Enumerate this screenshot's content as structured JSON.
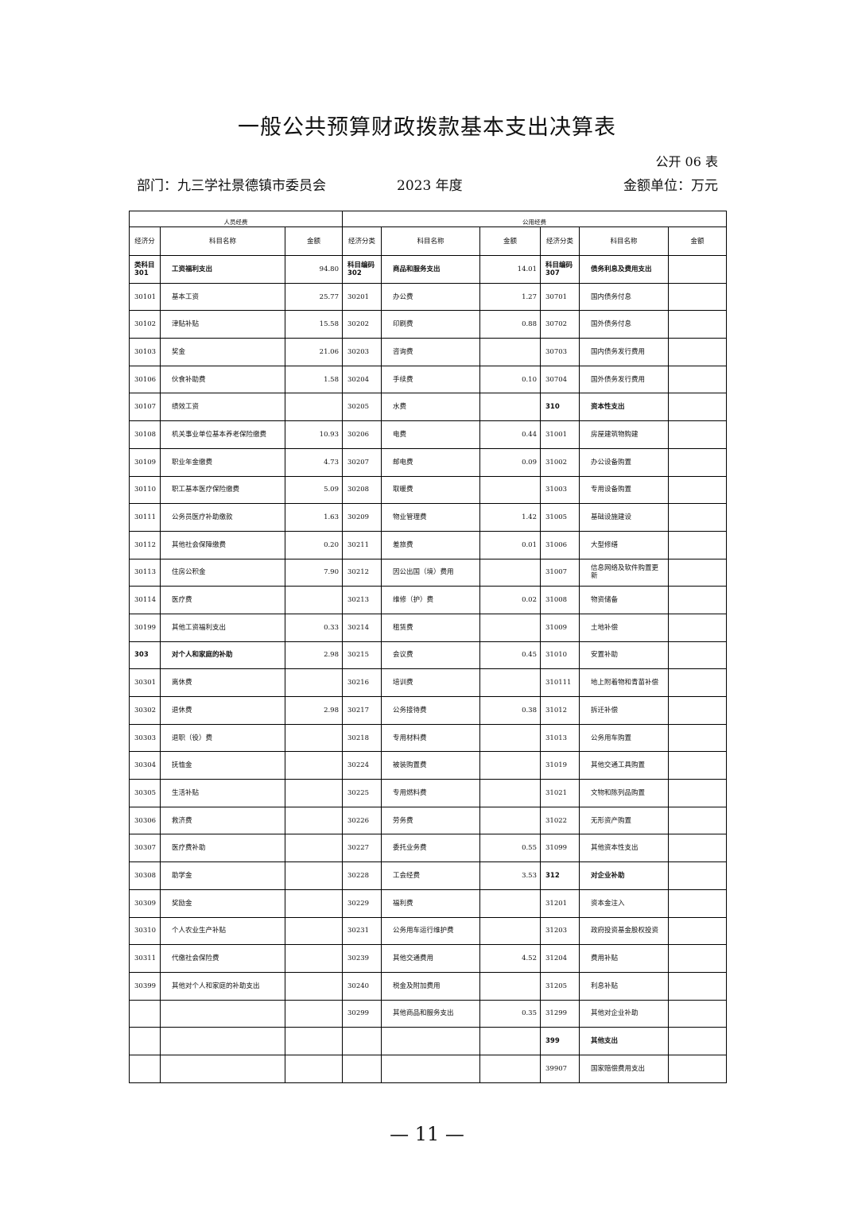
{
  "header": {
    "title": "一般公共预算财政拨款基本支出决算表",
    "form_no": "公开 06 表",
    "department": "部门：九三学社景德镇市委员会",
    "year": "2023 年度",
    "unit": "金额单位：万元"
  },
  "table": {
    "groups": [
      "人员经费",
      "公用经费"
    ],
    "columns": [
      "经济分",
      "科目名称",
      "金额",
      "经济分类",
      "科目名称",
      "金额",
      "经济分类",
      "科目名称",
      "金额"
    ],
    "rows": [
      [
        "类科目\n301",
        "工资福利支出",
        "94.80",
        "科目编码\n302",
        "商品和服务支出",
        "14.01",
        "科目编码\n307",
        "债务利息及费用支出",
        null
      ],
      [
        "30101",
        "基本工资",
        "25.77",
        "30201",
        "办公费",
        "1.27",
        "30701",
        "国内债务付息",
        null
      ],
      [
        "30102",
        "津贴补贴",
        "15.58",
        "30202",
        "印刷费",
        "0.88",
        "30702",
        "国外债务付息",
        null
      ],
      [
        "30103",
        "奖金",
        "21.06",
        "30203",
        "咨询费",
        null,
        "30703",
        "国内债务发行费用",
        null
      ],
      [
        "30106",
        "伙食补助费",
        "1.58",
        "30204",
        "手续费",
        "0.10",
        "30704",
        "国外债务发行费用",
        null
      ],
      [
        "30107",
        "绩效工资",
        null,
        "30205",
        "水费",
        null,
        "310",
        "资本性支出",
        null
      ],
      [
        "30108",
        "机关事业单位基本养老保险缴费",
        "10.93",
        "30206",
        "电费",
        "0.44",
        "31001",
        "房屋建筑物购建",
        null
      ],
      [
        "30109",
        "职业年金缴费",
        "4.73",
        "30207",
        "邮电费",
        "0.09",
        "31002",
        "办公设备购置",
        null
      ],
      [
        "30110",
        "职工基本医疗保险缴费",
        "5.09",
        "30208",
        "取暖费",
        null,
        "31003",
        "专用设备购置",
        null
      ],
      [
        "30111",
        "公务员医疗补助缴款",
        "1.63",
        "30209",
        "物业管理费",
        "1.42",
        "31005",
        "基础设施建设",
        null
      ],
      [
        "30112",
        "其他社会保障缴费",
        "0.20",
        "30211",
        "差旅费",
        "0.01",
        "31006",
        "大型修缮",
        null
      ],
      [
        "30113",
        "住房公积金",
        "7.90",
        "30212",
        "因公出国（境）费用",
        null,
        "31007",
        "信息网络及软件购置更新",
        null
      ],
      [
        "30114",
        "医疗费",
        null,
        "30213",
        "维修（护）费",
        "0.02",
        "31008",
        "物资储备",
        null
      ],
      [
        "30199",
        "其他工资福利支出",
        "0.33",
        "30214",
        "租赁费",
        null,
        "31009",
        "土地补偿",
        null
      ],
      [
        "303",
        "对个人和家庭的补助",
        "2.98",
        "30215",
        "会议费",
        "0.45",
        "31010",
        "安置补助",
        null
      ],
      [
        "30301",
        "离休费",
        null,
        "30216",
        "培训费",
        null,
        "310111",
        "地上附着物和青苗补偿",
        null
      ],
      [
        "30302",
        "退休费",
        "2.98",
        "30217",
        "公务接待费",
        "0.38",
        "31012",
        "拆迁补偿",
        null
      ],
      [
        "30303",
        "退职（役）费",
        null,
        "30218",
        "专用材料费",
        null,
        "31013",
        "公务用车购置",
        null
      ],
      [
        "30304",
        "抚恤金",
        null,
        "30224",
        "被装购置费",
        null,
        "31019",
        "其他交通工具购置",
        null
      ],
      [
        "30305",
        "生活补贴",
        null,
        "30225",
        "专用燃料费",
        null,
        "31021",
        "文物和陈列品购置",
        null
      ],
      [
        "30306",
        "救济费",
        null,
        "30226",
        "劳务费",
        null,
        "31022",
        "无形资产购置",
        null
      ],
      [
        "30307",
        "医疗费补助",
        null,
        "30227",
        "委托业务费",
        "0.55",
        "31099",
        "其他资本性支出",
        null
      ],
      [
        "30308",
        "助学金",
        null,
        "30228",
        "工会经费",
        "3.53",
        "312",
        "对企业补助",
        null
      ],
      [
        "30309",
        "奖励金",
        null,
        "30229",
        "福利费",
        null,
        "31201",
        "资本金注入",
        null
      ],
      [
        "30310",
        "个人农业生产补贴",
        null,
        "30231",
        "公务用车运行维护费",
        null,
        "31203",
        "政府投资基金股权投资",
        null
      ],
      [
        "30311",
        "代缴社会保险费",
        null,
        "30239",
        "其他交通费用",
        "4.52",
        "31204",
        "费用补贴",
        null
      ],
      [
        "30399",
        "其他对个人和家庭的补助支出",
        null,
        "30240",
        "税金及附加费用",
        null,
        "31205",
        "利息补贴",
        null
      ],
      [
        null,
        null,
        null,
        "30299",
        "其他商品和服务支出",
        "0.35",
        "31299",
        "其他对企业补助",
        null
      ],
      [
        null,
        null,
        null,
        null,
        null,
        null,
        "399",
        "其他支出",
        null
      ],
      [
        null,
        null,
        null,
        null,
        null,
        null,
        "39907",
        "国家赔偿费用支出",
        null
      ]
    ]
  },
  "footer": {
    "page": "— 11 —"
  }
}
